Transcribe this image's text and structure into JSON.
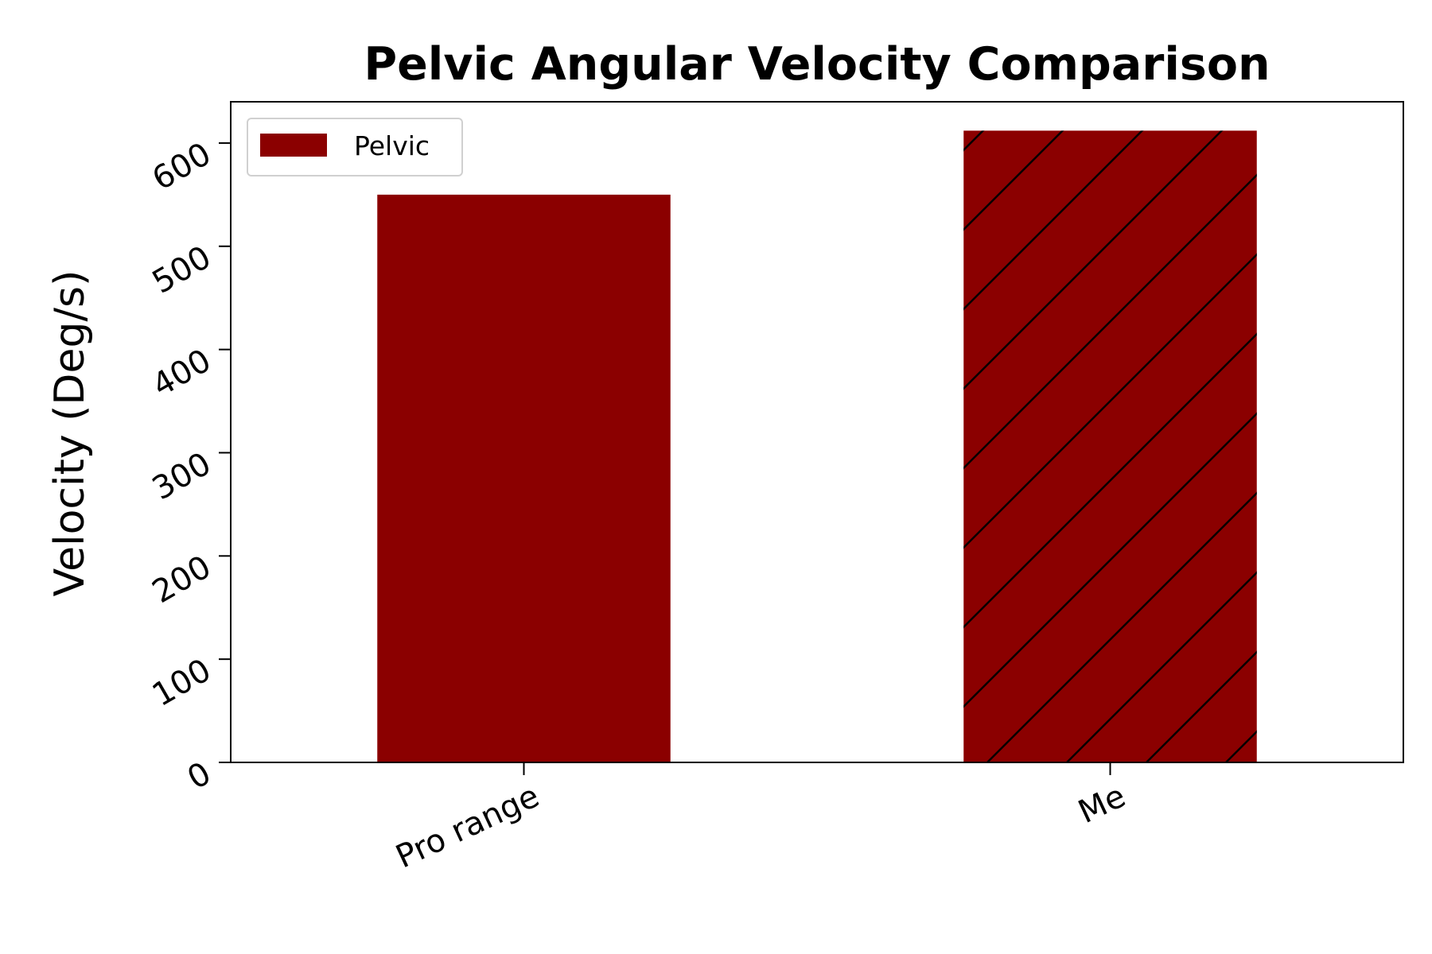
{
  "chart_data": {
    "type": "bar",
    "title": "Pelvic Angular Velocity Comparison",
    "xlabel": "",
    "ylabel": "Velocity (Deg/s)",
    "categories": [
      "Pro range",
      "Me"
    ],
    "series": [
      {
        "name": "Pelvic",
        "values": [
          550,
          612
        ]
      }
    ],
    "hatched": [
      false,
      true
    ],
    "ylim": [
      0,
      640
    ],
    "yticks": [
      0,
      100,
      200,
      300,
      400,
      500,
      600
    ],
    "grid": false,
    "legend_position": "top-left",
    "colors": {
      "bar": "#8b0000",
      "hatch": "#000000",
      "axis": "#000000"
    }
  }
}
